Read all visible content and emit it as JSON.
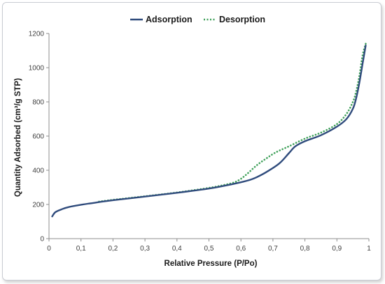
{
  "chart_data": {
    "type": "line",
    "title": "",
    "xlabel": "Relative Pressure (P/Po)",
    "ylabel": "Quantity Adsorbed (cm³/g STP)",
    "xlim": [
      0,
      1
    ],
    "ylim": [
      0,
      1200
    ],
    "x_ticks": [
      "0",
      "0,1",
      "0,2",
      "0,3",
      "0,4",
      "0,5",
      "0,6",
      "0,7",
      "0,8",
      "0,9",
      "1"
    ],
    "y_ticks": [
      "0",
      "200",
      "400",
      "600",
      "800",
      "1000",
      "1200"
    ],
    "grid": false,
    "legend_position": "top-center",
    "series": [
      {
        "name": "Adsorption",
        "color": "#2f4b7c",
        "style": "solid",
        "points": [
          [
            0.01,
            130
          ],
          [
            0.02,
            155
          ],
          [
            0.04,
            172
          ],
          [
            0.06,
            184
          ],
          [
            0.1,
            198
          ],
          [
            0.15,
            212
          ],
          [
            0.2,
            225
          ],
          [
            0.3,
            246
          ],
          [
            0.4,
            268
          ],
          [
            0.5,
            293
          ],
          [
            0.55,
            310
          ],
          [
            0.6,
            330
          ],
          [
            0.63,
            345
          ],
          [
            0.65,
            360
          ],
          [
            0.68,
            390
          ],
          [
            0.72,
            440
          ],
          [
            0.75,
            500
          ],
          [
            0.77,
            540
          ],
          [
            0.8,
            570
          ],
          [
            0.85,
            605
          ],
          [
            0.9,
            655
          ],
          [
            0.93,
            700
          ],
          [
            0.95,
            760
          ],
          [
            0.96,
            820
          ],
          [
            0.97,
            910
          ],
          [
            0.98,
            1020
          ],
          [
            0.99,
            1130
          ]
        ]
      },
      {
        "name": "Desorption",
        "color": "#3fa05a",
        "style": "dotted",
        "points": [
          [
            0.99,
            1140
          ],
          [
            0.98,
            1070
          ],
          [
            0.97,
            950
          ],
          [
            0.96,
            860
          ],
          [
            0.95,
            800
          ],
          [
            0.93,
            730
          ],
          [
            0.9,
            670
          ],
          [
            0.85,
            620
          ],
          [
            0.8,
            585
          ],
          [
            0.75,
            540
          ],
          [
            0.72,
            515
          ],
          [
            0.7,
            495
          ],
          [
            0.68,
            470
          ],
          [
            0.65,
            430
          ],
          [
            0.62,
            380
          ],
          [
            0.6,
            350
          ],
          [
            0.58,
            330
          ],
          [
            0.55,
            315
          ],
          [
            0.5,
            297
          ],
          [
            0.4,
            270
          ],
          [
            0.3,
            248
          ],
          [
            0.2,
            227
          ],
          [
            0.15,
            215
          ]
        ]
      }
    ]
  }
}
